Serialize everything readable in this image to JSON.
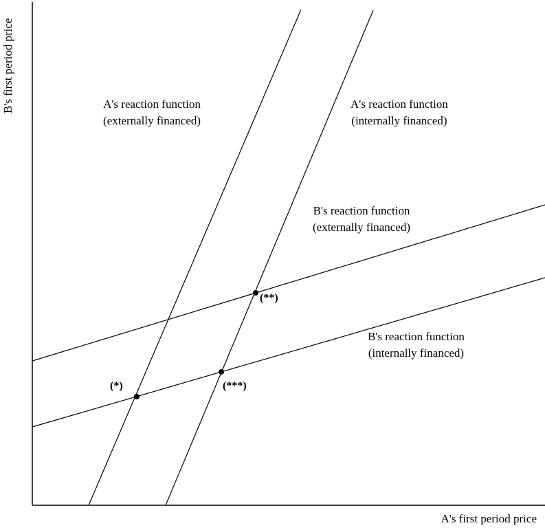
{
  "axes": {
    "x_label": "A's first period price",
    "y_label": "B's first period price"
  },
  "curves": {
    "a_external": {
      "line1": "A's reaction function",
      "line2": "(externally financed)"
    },
    "a_internal": {
      "line1": "A's reaction function",
      "line2": "(internally financed)"
    },
    "b_external": {
      "line1": "B's reaction function",
      "line2": "(externally financed)"
    },
    "b_internal": {
      "line1": "B's reaction function",
      "line2": "(internally financed)"
    }
  },
  "equilibria": {
    "single": "(*)",
    "double": "(**)",
    "triple": "(***)"
  }
}
